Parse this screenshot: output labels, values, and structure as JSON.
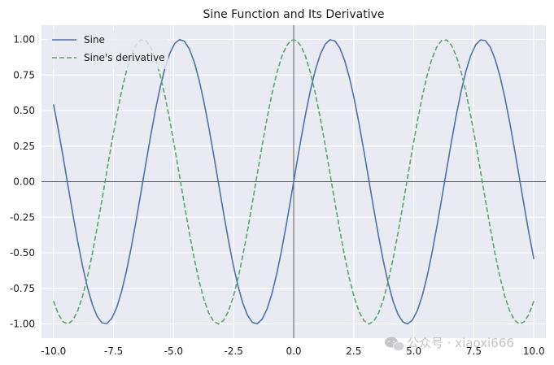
{
  "chart_data": {
    "type": "line",
    "title": "Sine Function and Its Derivative",
    "xlabel": "",
    "ylabel": "",
    "xlim": [
      -10.5,
      10.5
    ],
    "ylim": [
      -1.1,
      1.1
    ],
    "x_ticks": [
      -10.0,
      -7.5,
      -5.0,
      -2.5,
      0.0,
      2.5,
      5.0,
      7.5,
      10.0
    ],
    "x_tick_labels": [
      "-10.0",
      "-7.5",
      "-5.0",
      "-2.5",
      "0.0",
      "2.5",
      "5.0",
      "7.5",
      "10.0"
    ],
    "y_ticks": [
      1.0,
      0.75,
      0.5,
      0.25,
      0.0,
      -0.25,
      -0.5,
      -0.75,
      -1.0
    ],
    "y_tick_labels": [
      "1.00",
      "0.75",
      "0.50",
      "0.25",
      "0.00",
      "-0.25",
      "-0.50",
      "-0.75",
      "-1.00"
    ],
    "grid": true,
    "legend_position": "top-left",
    "axis_lines_at_zero": true,
    "series": [
      {
        "name": "Sine",
        "color": "#4c72b0",
        "style": "solid",
        "function": "sin(x)",
        "x_range": [
          -10.0,
          10.0
        ],
        "num_points": 100
      },
      {
        "name": "Sine's derivative",
        "color": "#55a868",
        "style": "dashed",
        "function": "cos(x)",
        "x_range": [
          -10.0,
          10.0
        ],
        "num_points": 100
      }
    ]
  },
  "watermark": {
    "text": "公众号 · xiaoxi666",
    "icon": "wechat-icon"
  },
  "colors": {
    "plot_background": "#eaeaf2",
    "grid": "#ffffff",
    "zero_axis": "#1a1a1a"
  }
}
